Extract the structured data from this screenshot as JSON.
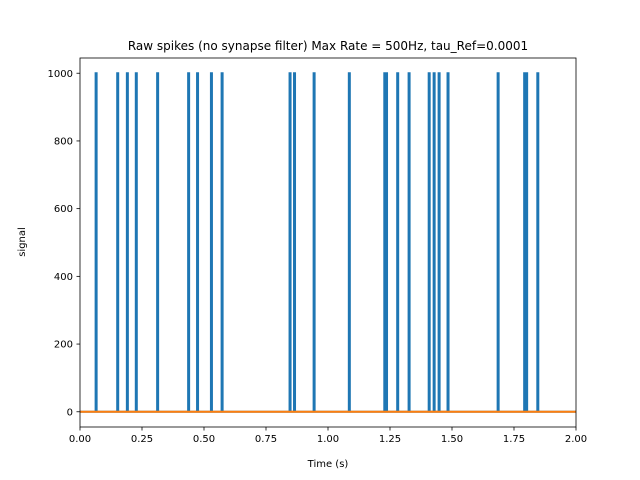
{
  "chart_data": {
    "type": "line",
    "title": "Raw spikes (no synapse filter) Max Rate = 500Hz, tau_Ref=0.0001",
    "xlabel": "Time (s)",
    "ylabel": "signal",
    "xlim": [
      0,
      2.0
    ],
    "ylim": [
      -45,
      1045
    ],
    "grid": false,
    "legend": "none",
    "x_ticks": [
      {
        "value": 0.0,
        "label": "0.00"
      },
      {
        "value": 0.25,
        "label": "0.25"
      },
      {
        "value": 0.5,
        "label": "0.50"
      },
      {
        "value": 0.75,
        "label": "0.75"
      },
      {
        "value": 1.0,
        "label": "1.00"
      },
      {
        "value": 1.25,
        "label": "1.25"
      },
      {
        "value": 1.5,
        "label": "1.50"
      },
      {
        "value": 1.75,
        "label": "1.75"
      },
      {
        "value": 2.0,
        "label": "2.00"
      }
    ],
    "y_ticks": [
      {
        "value": 0,
        "label": "0"
      },
      {
        "value": 200,
        "label": "200"
      },
      {
        "value": 400,
        "label": "400"
      },
      {
        "value": 600,
        "label": "600"
      },
      {
        "value": 800,
        "label": "800"
      },
      {
        "value": 1000,
        "label": "1000"
      }
    ],
    "series": [
      {
        "color": "#1f77b4",
        "kind": "spikes",
        "baseline": 0,
        "spike_value": 1000,
        "spike_times": [
          0.065,
          0.152,
          0.191,
          0.227,
          0.313,
          0.438,
          0.474,
          0.53,
          0.573,
          0.847,
          0.865,
          0.944,
          1.086,
          1.229,
          1.236,
          1.281,
          1.327,
          1.408,
          1.428,
          1.448,
          1.484,
          1.686,
          1.793,
          1.801,
          1.846
        ]
      },
      {
        "color": "#ff7f0e",
        "kind": "flat",
        "x": [
          0.0,
          2.0
        ],
        "y": [
          0,
          0
        ]
      }
    ]
  }
}
